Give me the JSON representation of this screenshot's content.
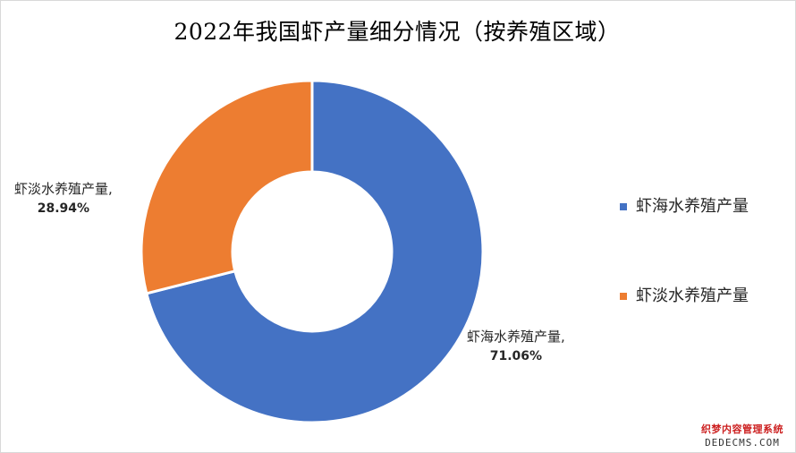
{
  "chart_data": {
    "type": "pie",
    "variant": "donut",
    "title": "2022年我国虾产量细分情况（按养殖区域）",
    "categories": [
      "虾海水养殖产量",
      "虾淡水养殖产量"
    ],
    "values": [
      71.06,
      28.94
    ],
    "value_unit": "%",
    "colors": [
      "#4472c4",
      "#ed7d31"
    ],
    "data_labels": [
      {
        "name": "虾海水养殖产量,",
        "value": "71.06%"
      },
      {
        "name": "虾淡水养殖产量,",
        "value": "28.94%"
      }
    ],
    "legend": {
      "position": "right",
      "items": [
        "虾海水养殖产量",
        "虾淡水养殖产量"
      ]
    }
  },
  "watermark": {
    "line1": "织梦内容管理系统",
    "line2": "DEDECMS.COM",
    "color": "#cc1f1f"
  }
}
